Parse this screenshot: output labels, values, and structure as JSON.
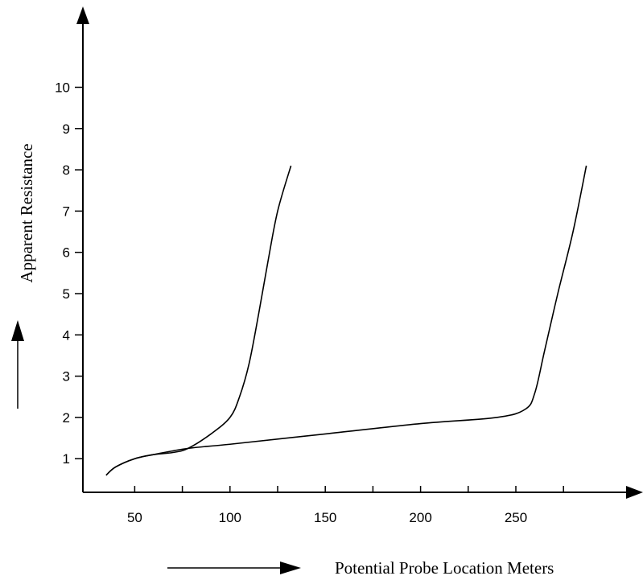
{
  "chart_data": {
    "type": "line",
    "title": "",
    "xlabel": "Potential Probe Location Meters",
    "ylabel": "Apparent Resistance",
    "xlim": [
      25,
      330
    ],
    "ylim": [
      0.2,
      11.5
    ],
    "x_ticks": [
      50,
      100,
      150,
      200,
      250
    ],
    "y_ticks": [
      1,
      2,
      3,
      4,
      5,
      6,
      7,
      8,
      9,
      10
    ],
    "grid": false,
    "legend": "none",
    "series": [
      {
        "x": [
          35,
          40,
          50,
          60,
          70,
          78,
          90,
          100,
          105,
          110,
          115,
          120,
          125,
          132
        ],
        "y": [
          0.6,
          0.8,
          1.0,
          1.1,
          1.15,
          1.25,
          1.6,
          2.0,
          2.5,
          3.3,
          4.5,
          5.8,
          7.0,
          8.1
        ]
      },
      {
        "x": [
          35,
          40,
          50,
          60,
          78,
          100,
          150,
          200,
          240,
          255,
          260,
          265,
          272,
          280,
          287
        ],
        "y": [
          0.6,
          0.8,
          1.0,
          1.1,
          1.25,
          1.35,
          1.6,
          1.85,
          2.0,
          2.2,
          2.6,
          3.6,
          5.0,
          6.5,
          8.1
        ]
      }
    ]
  }
}
